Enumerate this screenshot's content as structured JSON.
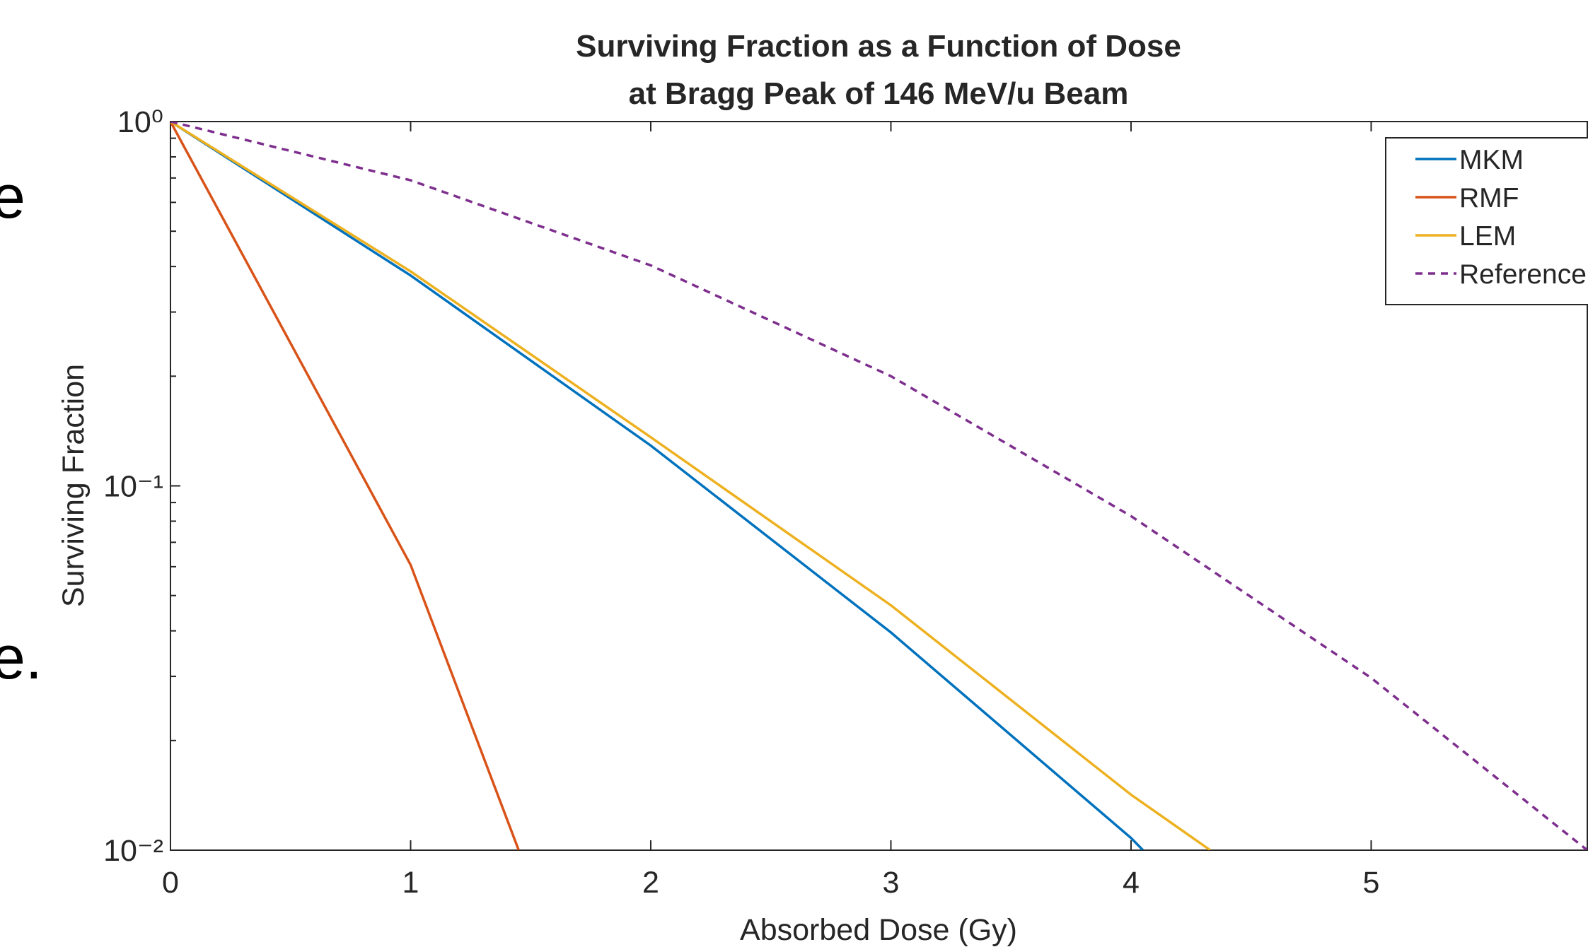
{
  "side_text": [
    "e",
    "e."
  ],
  "chart_data": {
    "type": "line",
    "title": [
      "Surviving Fraction as a Function of Dose",
      "at Bragg Peak of 146 MeV/u Beam"
    ],
    "x_label": "Absorbed Dose (Gy)",
    "y_label": "Surviving Fraction",
    "log_y": true,
    "legend": "northeast",
    "xlim": [
      0,
      5.9
    ],
    "ylim": [
      0.01,
      1
    ],
    "xticks": [
      0,
      1,
      2,
      3,
      4,
      5
    ],
    "yticks": [
      {
        "value": 1,
        "label": "10⁰"
      },
      {
        "value": 0.1,
        "label": "10⁻¹"
      },
      {
        "value": 0.01,
        "label": "10⁻²"
      }
    ],
    "yminor_ticks": [
      0.02,
      0.03,
      0.04,
      0.05,
      0.06,
      0.07,
      0.08,
      0.09,
      0.2,
      0.3,
      0.4,
      0.5,
      0.6,
      0.7,
      0.8,
      0.9
    ],
    "series": [
      {
        "name": "MKM",
        "color": "#0072BD",
        "x": [
          0,
          1,
          2,
          3,
          4,
          4.05
        ],
        "values": [
          1,
          0.378,
          0.129,
          0.0396,
          0.0108,
          0.01
        ]
      },
      {
        "name": "RMF",
        "color": "#D95319",
        "x": [
          0,
          1,
          1.45
        ],
        "values": [
          1,
          0.0607,
          0.01
        ]
      },
      {
        "name": "LEM",
        "color": "#EDB120",
        "x": [
          0,
          1,
          2,
          3,
          4,
          4.33
        ],
        "values": [
          1,
          0.388,
          0.136,
          0.047,
          0.0142,
          0.01
        ]
      },
      {
        "name": "Reference",
        "color": "#7E2F8E",
        "dash": true,
        "x": [
          0,
          1,
          2,
          3,
          4,
          5,
          5.9
        ],
        "values": [
          1,
          0.69,
          0.403,
          0.2,
          0.0826,
          0.0297,
          0.01
        ]
      }
    ]
  }
}
